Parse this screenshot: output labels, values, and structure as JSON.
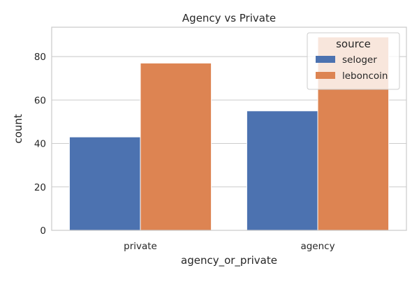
{
  "colors": {
    "background": "#ffffff",
    "grid": "#cccccc",
    "seloger": "#4c72b0",
    "leboncoin": "#dd8452",
    "text": "#262626"
  },
  "chart_data": {
    "type": "bar",
    "title": "Agency vs Private",
    "xlabel": "agency_or_private",
    "ylabel": "count",
    "categories": [
      "private",
      "agency"
    ],
    "series": [
      {
        "name": "seloger",
        "values": [
          43,
          55
        ],
        "color": "#4c72b0"
      },
      {
        "name": "leboncoin",
        "values": [
          77,
          89
        ],
        "color": "#dd8452"
      }
    ],
    "ylim": [
      0,
      93.5
    ],
    "yticks": [
      0,
      20,
      40,
      60,
      80
    ],
    "ytick_labels": [
      "0",
      "20",
      "40",
      "60",
      "80"
    ],
    "grid": true,
    "legend": {
      "title": "source",
      "position": "top-right"
    }
  }
}
